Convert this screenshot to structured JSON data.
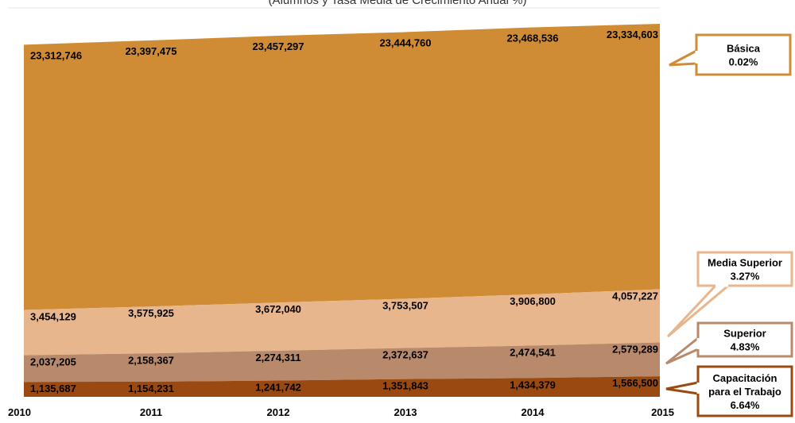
{
  "subtitle": "(Alumnos y Tasa Media de Crecimiento Anual %)",
  "chart_data": {
    "type": "area",
    "stacked": true,
    "categories": [
      "2010",
      "2011",
      "2012",
      "2013",
      "2014",
      "2015"
    ],
    "series": [
      {
        "name": "Capacitación para el Trabajo",
        "values": [
          1135687,
          1154231,
          1241742,
          1351843,
          1434379,
          1566500
        ],
        "value_labels": [
          "1,135,687",
          "1,154,231",
          "1,241,742",
          "1,351,843",
          "1,434,379",
          "1,566,500"
        ],
        "color": "#9a4a10",
        "label_color": "#ffffff",
        "rate": "6.64%",
        "callout": [
          "Capacitación",
          "para el Trabajo",
          "6.64%"
        ]
      },
      {
        "name": "Superior",
        "values": [
          2037205,
          2158367,
          2274311,
          2372637,
          2474541,
          2579289
        ],
        "value_labels": [
          "2,037,205",
          "2,158,367",
          "2,274,311",
          "2,372,637",
          "2,474,541",
          "2,579,289"
        ],
        "color": "#b8896a",
        "label_color": "#000000",
        "rate": "4.83%",
        "callout": [
          "Superior",
          "4.83%"
        ]
      },
      {
        "name": "Media Superior",
        "values": [
          3454129,
          3575925,
          3672040,
          3753507,
          3906800,
          4057227
        ],
        "value_labels": [
          "3,454,129",
          "3,575,925",
          "3,672,040",
          "3,753,507",
          "3,906,800",
          "4,057,227"
        ],
        "color": "#e8b68c",
        "label_color": "#000000",
        "rate": "3.27%",
        "callout": [
          "Media Superior",
          "3.27%"
        ]
      },
      {
        "name": "Básica",
        "values": [
          23312746,
          23397475,
          23457297,
          23444760,
          23468536,
          23334603
        ],
        "value_labels": [
          "23,312,746",
          "23,397,475",
          "23,457,297",
          "23,444,760",
          "23,468,536",
          "23,334,603"
        ],
        "color": "#cf8c35",
        "label_color": "#000000",
        "rate": "0.02%",
        "callout": [
          "Básica",
          "0.02%"
        ]
      }
    ],
    "xlabel": "",
    "ylabel": "",
    "grid": false,
    "legend": "callouts-right"
  }
}
